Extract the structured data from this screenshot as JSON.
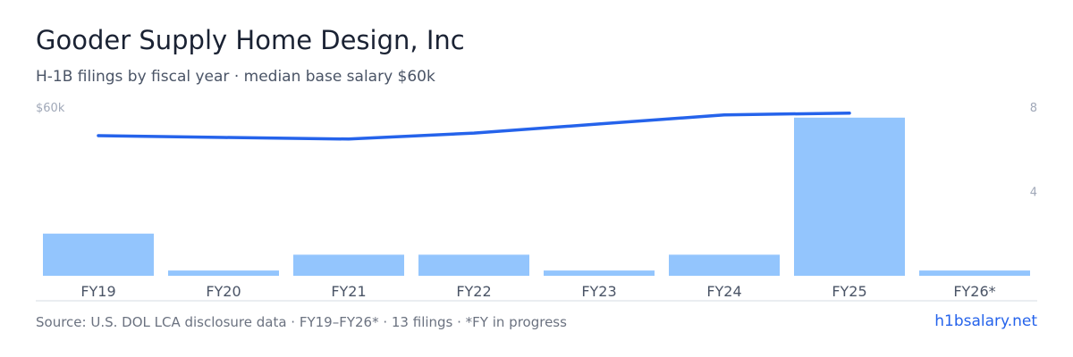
{
  "header": {
    "title": "Gooder Supply Home Design, Inc",
    "subtitle": "H-1B filings by fiscal year · median base salary $60k"
  },
  "footer": {
    "source": "Source: U.S. DOL LCA disclosure data · FY19–FY26* · 13 filings · *FY in progress",
    "brand": "h1bsalary.net"
  },
  "colors": {
    "bar": "#93c5fd",
    "line": "#2563eb",
    "axis_text": "#a0a8b8",
    "tick_text": "#4a5466",
    "baseline": "#d6dbe3"
  },
  "chart_data": {
    "type": "bar",
    "categories": [
      "FY19",
      "FY20",
      "FY21",
      "FY22",
      "FY23",
      "FY24",
      "FY25",
      "FY26*"
    ],
    "series": [
      {
        "type": "bar",
        "axis": "right",
        "values": [
          2,
          0.25,
          1,
          1,
          0.25,
          1,
          7.5,
          0.25
        ]
      },
      {
        "type": "line",
        "axis": "left",
        "values": [
          54000,
          53300,
          52700,
          55000,
          58500,
          62000,
          62700,
          null
        ]
      }
    ],
    "left_axis": {
      "label": "$60k",
      "ylim": [
        0,
        65000
      ]
    },
    "right_axis": {
      "ticks": [
        "8",
        "4"
      ],
      "ylim": [
        0,
        8
      ]
    },
    "grid": false,
    "legend": "none"
  }
}
